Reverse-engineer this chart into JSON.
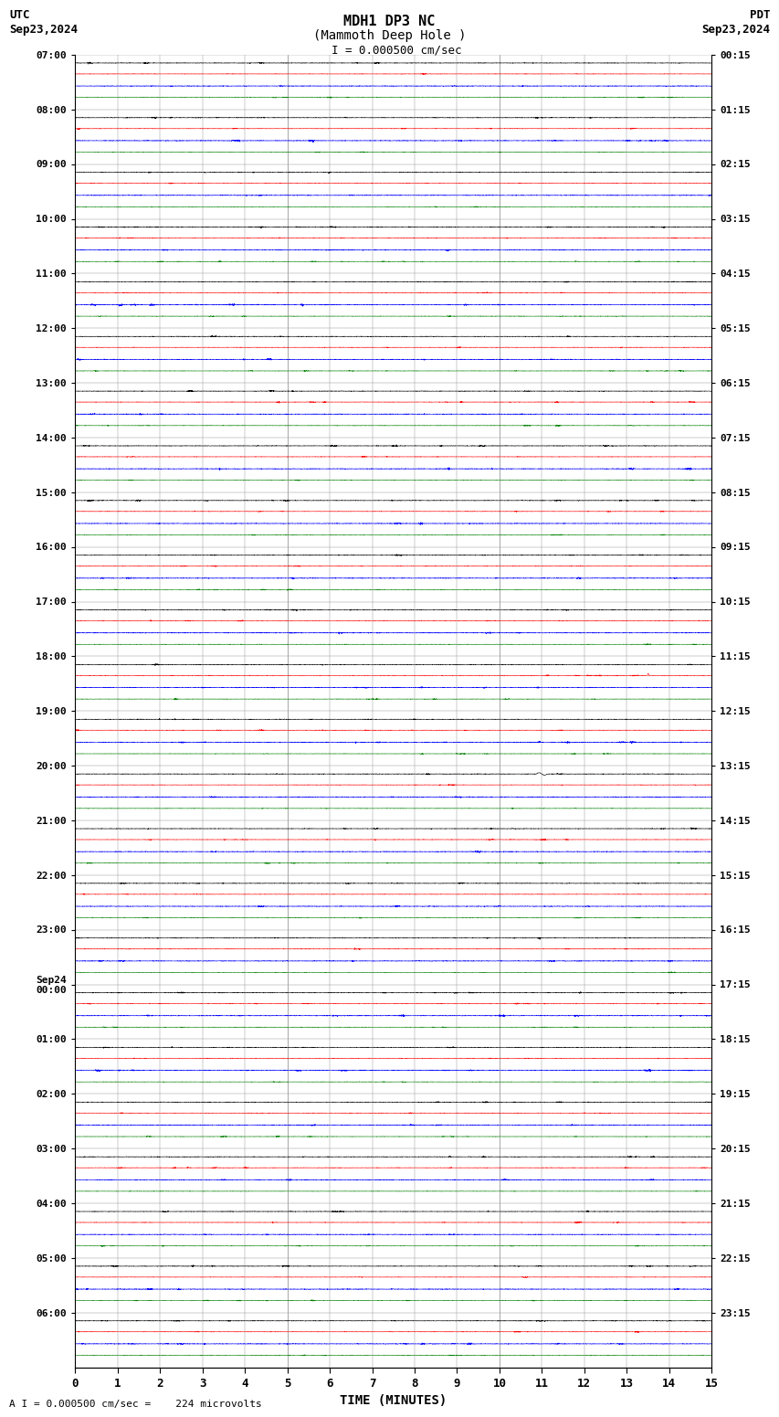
{
  "title_line1": "MDH1 DP3 NC",
  "title_line2": "(Mammoth Deep Hole )",
  "scale_label": "  I = 0.000500 cm/sec",
  "bottom_label": "A I = 0.000500 cm/sec =    224 microvolts",
  "utc_label": "UTC",
  "pdt_label": "PDT",
  "date_left": "Sep23,2024",
  "date_right": "Sep23,2024",
  "xlabel": "TIME (MINUTES)",
  "x_ticks": [
    0,
    1,
    2,
    3,
    4,
    5,
    6,
    7,
    8,
    9,
    10,
    11,
    12,
    13,
    14,
    15
  ],
  "minutes_per_row": 15,
  "background_color": "white",
  "fig_width": 8.5,
  "fig_height": 15.84,
  "dpi": 100,
  "utc_hours": [
    "07:00",
    "08:00",
    "09:00",
    "10:00",
    "11:00",
    "12:00",
    "13:00",
    "14:00",
    "15:00",
    "16:00",
    "17:00",
    "18:00",
    "19:00",
    "20:00",
    "21:00",
    "22:00",
    "23:00",
    "Sep24\n00:00",
    "01:00",
    "02:00",
    "03:00",
    "04:00",
    "05:00",
    "06:00"
  ],
  "pdt_labels": [
    "00:15",
    "01:15",
    "02:15",
    "03:15",
    "04:15",
    "05:15",
    "06:15",
    "07:15",
    "08:15",
    "09:15",
    "10:15",
    "11:15",
    "12:15",
    "13:15",
    "14:15",
    "15:15",
    "16:15",
    "17:15",
    "18:15",
    "19:15",
    "20:15",
    "21:15",
    "22:15",
    "23:15"
  ],
  "trace_colors": [
    "black",
    "red",
    "blue",
    "green"
  ],
  "noise_amp_black": 0.0018,
  "noise_amp_red": 0.0015,
  "noise_amp_blue": 0.0022,
  "noise_amp_green": 0.0014,
  "trace_linewidth": 0.4,
  "samples_per_row": 4500
}
